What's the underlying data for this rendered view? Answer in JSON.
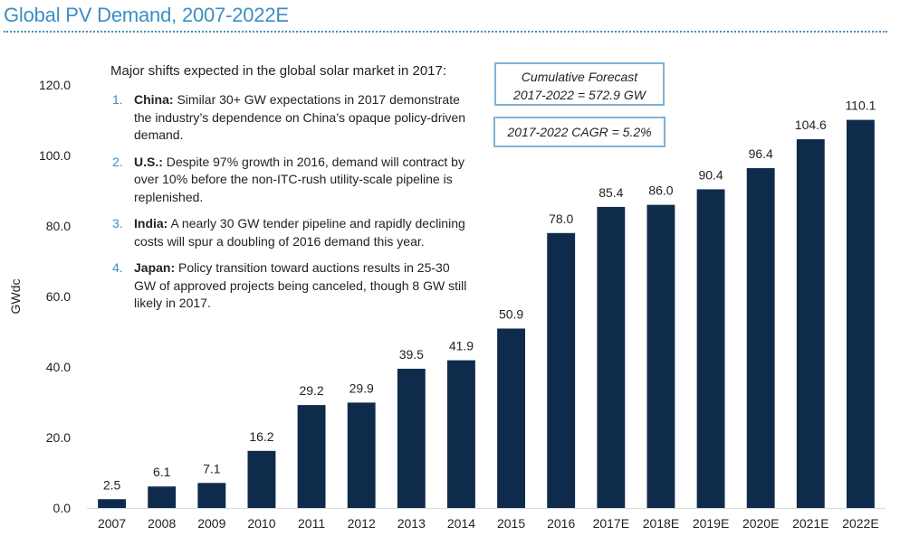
{
  "title": "Global PV Demand, 2007-2022E",
  "notes": {
    "heading": "Major shifts expected in the global solar market in 2017:",
    "items": [
      {
        "num": "1.",
        "key": "China:",
        "text": " Similar 30+ GW expectations in 2017 demonstrate the industry’s dependence on China’s opaque policy-driven demand."
      },
      {
        "num": "2.",
        "key": "U.S.:",
        "text": " Despite 97% growth in 2016, demand will contract by over 10% before the non-ITC-rush utility-scale pipeline is replenished."
      },
      {
        "num": "3.",
        "key": "India:",
        "text": " A nearly 30 GW tender pipeline and rapidly declining costs will spur a doubling of 2016 demand this year."
      },
      {
        "num": "4.",
        "key": "Japan:",
        "text": " Policy transition toward auctions results in 25-30 GW of approved projects being canceled, though 8 GW still likely in 2017."
      }
    ]
  },
  "callouts": {
    "cumulative_line1": "Cumulative Forecast",
    "cumulative_line2": "2017-2022 = 572.9 GW",
    "cagr": "2017-2022 CAGR = 5.2%"
  },
  "colors": {
    "bar": "#0f2b4c",
    "accent": "#3b8fc4",
    "box_border": "#7fb2d6"
  },
  "chart_data": {
    "type": "bar",
    "title": "Global PV Demand, 2007-2022E",
    "xlabel": "",
    "ylabel": "GWdc",
    "ylim": [
      0,
      120
    ],
    "yticks": [
      "0.0",
      "20.0",
      "40.0",
      "60.0",
      "80.0",
      "100.0",
      "120.0"
    ],
    "ytick_values": [
      0,
      20,
      40,
      60,
      80,
      100,
      120
    ],
    "grid": false,
    "categories": [
      "2007",
      "2008",
      "2009",
      "2010",
      "2011",
      "2012",
      "2013",
      "2014",
      "2015",
      "2016",
      "2017E",
      "2018E",
      "2019E",
      "2020E",
      "2021E",
      "2022E"
    ],
    "values": [
      2.5,
      6.1,
      7.1,
      16.2,
      29.2,
      29.9,
      39.5,
      41.9,
      50.9,
      78.0,
      85.4,
      86.0,
      90.4,
      96.4,
      104.6,
      110.1
    ],
    "value_labels": [
      "2.5",
      "6.1",
      "7.1",
      "16.2",
      "29.2",
      "29.9",
      "39.5",
      "41.9",
      "50.9",
      "78.0",
      "85.4",
      "86.0",
      "90.4",
      "96.4",
      "104.6",
      "110.1"
    ]
  }
}
